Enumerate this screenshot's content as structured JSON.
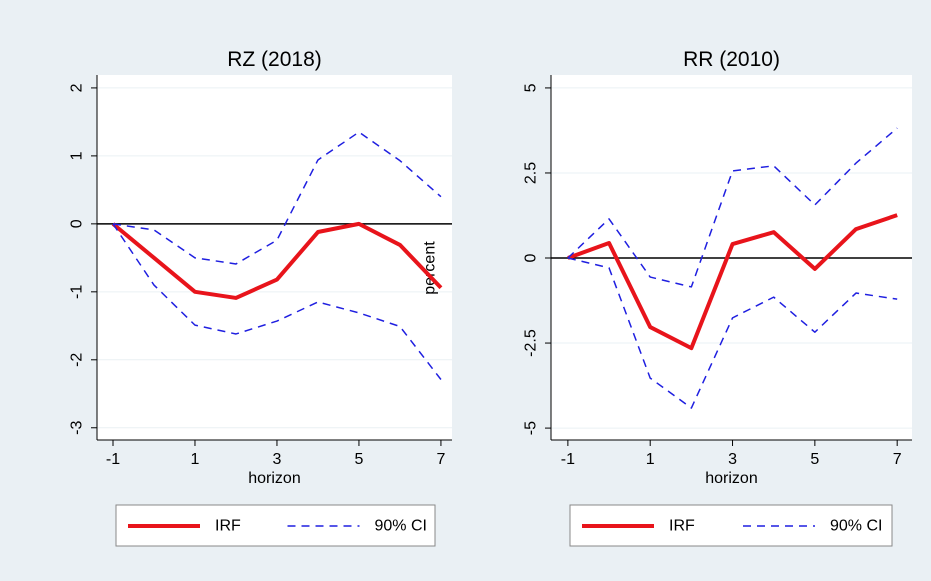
{
  "chart_data": [
    {
      "type": "line",
      "title": "RZ (2018)",
      "x_label": "horizon",
      "y_label": "percent",
      "x": [
        -1,
        0,
        1,
        2,
        3,
        4,
        5,
        6,
        7
      ],
      "xlim": [
        -1.39,
        7.27
      ],
      "xticks": [
        -1,
        1,
        3,
        5,
        7
      ],
      "ylim": [
        -3.18,
        2.19
      ],
      "yticks": [
        -3,
        -2,
        -1,
        0,
        1,
        2
      ],
      "reference_line": 0,
      "grid": true,
      "series": [
        {
          "name": "IRF",
          "color": "#e8141b",
          "values": [
            0,
            -0.5,
            -1.0,
            -1.09,
            -0.82,
            -0.12,
            0,
            -0.31,
            -0.94
          ]
        },
        {
          "name": "90% CI",
          "color": "#1f1fe0",
          "dashed": true,
          "upper": [
            0,
            -0.09,
            -0.5,
            -0.59,
            -0.24,
            0.94,
            1.35,
            0.93,
            0.4
          ],
          "lower": [
            0,
            -0.9,
            -1.49,
            -1.62,
            -1.43,
            -1.15,
            -1.31,
            -1.51,
            -2.29
          ]
        }
      ]
    },
    {
      "type": "line",
      "title": "RR (2010)",
      "x_label": "horizon",
      "x": [
        -1,
        0,
        1,
        2,
        3,
        4,
        5,
        6,
        7
      ],
      "xlim": [
        -1.41,
        7.36
      ],
      "xticks": [
        -1,
        1,
        3,
        5,
        7
      ],
      "ylim": [
        -5.35,
        5.38
      ],
      "yticks": [
        -5,
        -2.5,
        0,
        2.5,
        5
      ],
      "reference_line": 0,
      "grid": true,
      "series": [
        {
          "name": "IRF",
          "color": "#e8141b",
          "values": [
            0,
            0.44,
            -2.03,
            -2.65,
            0.41,
            0.76,
            -0.32,
            0.85,
            1.26
          ]
        },
        {
          "name": "90% CI",
          "color": "#1f1fe0",
          "dashed": true,
          "upper": [
            0,
            1.15,
            -0.56,
            -0.85,
            2.56,
            2.71,
            1.56,
            2.79,
            3.82
          ],
          "lower": [
            0,
            -0.29,
            -3.53,
            -4.41,
            -1.76,
            -1.15,
            -2.18,
            -1.03,
            -1.21
          ]
        }
      ]
    }
  ]
}
